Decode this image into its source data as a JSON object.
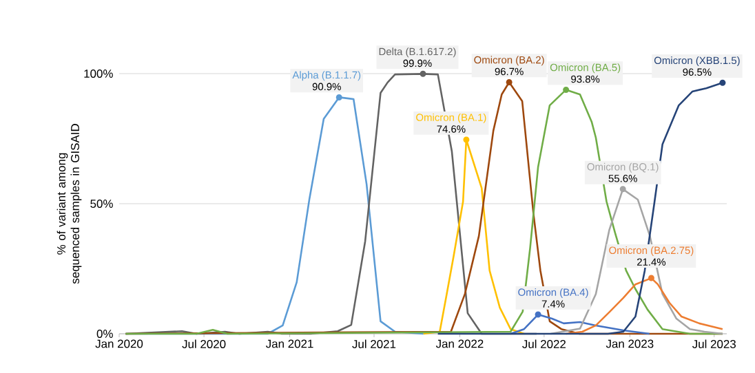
{
  "chart_data": {
    "type": "line",
    "ylabel": "% of variant among sequenced samples in GISAID",
    "xlim": [
      "2020-01-01",
      "2023-07-28"
    ],
    "ylim": [
      0,
      100
    ],
    "xticks": [
      {
        "value": "2020-01-01",
        "label": "Jan 2020"
      },
      {
        "value": "2020-07-01",
        "label": "Jul 2020"
      },
      {
        "value": "2021-01-01",
        "label": "Jan 2021"
      },
      {
        "value": "2021-07-01",
        "label": "Jul 2021"
      },
      {
        "value": "2022-01-01",
        "label": "Jan 2022"
      },
      {
        "value": "2022-07-01",
        "label": "Jul 2022"
      },
      {
        "value": "2023-01-01",
        "label": "Jan 2023"
      },
      {
        "value": "2023-07-01",
        "label": "Jul 2023"
      }
    ],
    "yticks": [
      {
        "value": 0,
        "label": "0%"
      },
      {
        "value": 50,
        "label": "50%"
      },
      {
        "value": 100,
        "label": "100%"
      }
    ],
    "grid": "y",
    "line_style": "solid",
    "series": [
      {
        "name": "Alpha (B.1.1.7)",
        "color": "#5b9bd5",
        "x": [
          "2020-01-15",
          "2020-11-15",
          "2020-12-17",
          "2021-01-16",
          "2021-02-12",
          "2021-03-15",
          "2021-04-17",
          "2021-05-18",
          "2021-06-15",
          "2021-07-15",
          "2021-08-15",
          "2021-10-15"
        ],
        "values": [
          0,
          0,
          3.2,
          19.8,
          51.5,
          82.6,
          90.9,
          90.2,
          57.5,
          4.8,
          0.8,
          0
        ],
        "value_labels": [
          null,
          null,
          null,
          null,
          null,
          null,
          "90.9%",
          null,
          null,
          null,
          null,
          null
        ]
      },
      {
        "name": "Delta (B.1.617.2)",
        "color": "#636363",
        "x": [
          "2020-01-15",
          "2020-05-15",
          "2020-06-15",
          "2020-08-15",
          "2020-09-15",
          "2020-11-15",
          "2020-12-15",
          "2021-02-15",
          "2021-04-14",
          "2021-05-13",
          "2021-06-12",
          "2021-07-15",
          "2021-07-30",
          "2021-08-15",
          "2021-10-14",
          "2021-11-15",
          "2021-12-15",
          "2022-01-18",
          "2022-02-17",
          "2022-06-15"
        ],
        "values": [
          0,
          1,
          0,
          0.8,
          0,
          0.8,
          0,
          0,
          1,
          3.4,
          35.6,
          92.6,
          96.6,
          99.7,
          99.9,
          99.7,
          70.1,
          7.9,
          0,
          0
        ],
        "value_labels": [
          null,
          null,
          null,
          null,
          null,
          null,
          null,
          null,
          null,
          null,
          null,
          null,
          null,
          null,
          "99.9%",
          null,
          null,
          null,
          null,
          null
        ]
      },
      {
        "name": "Omicron (BA.1)",
        "color": "#ffc000",
        "x": [
          "2021-10-15",
          "2021-11-19",
          "2021-12-04",
          "2021-12-19",
          "2022-01-08",
          "2022-01-15",
          "2022-02-17",
          "2022-03-06",
          "2022-03-28",
          "2022-04-20",
          "2022-05-19"
        ],
        "values": [
          0,
          0.8,
          15.3,
          30,
          50.8,
          74.6,
          56,
          24.3,
          10,
          1.8,
          0
        ],
        "value_labels": [
          null,
          null,
          null,
          null,
          null,
          "74.6%",
          null,
          null,
          null,
          null,
          null
        ]
      },
      {
        "name": "Omicron (BA.2)",
        "color": "#9e480e",
        "x": [
          "2020-01-15",
          "2021-12-13",
          "2022-01-12",
          "2022-02-11",
          "2022-03-14",
          "2022-04-01",
          "2022-04-17",
          "2022-05-15",
          "2022-06-08",
          "2022-06-23",
          "2022-07-13",
          "2022-08-07",
          "2022-09-15",
          "2023-07-19"
        ],
        "values": [
          0,
          0.8,
          15.3,
          37.6,
          78,
          92,
          96.7,
          89.4,
          46.3,
          24.3,
          4.8,
          1.8,
          0,
          0
        ],
        "value_labels": [
          null,
          null,
          null,
          null,
          null,
          null,
          "96.7%",
          null,
          null,
          null,
          null,
          null,
          null,
          null
        ]
      },
      {
        "name": "Omicron (BA.4)",
        "color": "#4472c4",
        "x": [
          "2022-04-20",
          "2022-05-19",
          "2022-06-18",
          "2022-07-18",
          "2022-08-12",
          "2022-09-16",
          "2022-10-20",
          "2022-12-18",
          "2023-02-12"
        ],
        "values": [
          0,
          1.8,
          7.4,
          5.8,
          4,
          4.5,
          3.2,
          1.3,
          0
        ],
        "value_labels": [
          null,
          null,
          "7.4%",
          null,
          null,
          null,
          null,
          null,
          null
        ]
      },
      {
        "name": "Omicron (BA.5)",
        "color": "#70ad47",
        "x": [
          "2020-01-15",
          "2020-06-15",
          "2020-07-20",
          "2020-08-20",
          "2022-04-20",
          "2022-05-16",
          "2022-06-01",
          "2022-06-18",
          "2022-07-13",
          "2022-08-17",
          "2022-09-16",
          "2022-10-11",
          "2022-10-20",
          "2022-11-12",
          "2022-11-30",
          "2022-12-24",
          "2023-01-13",
          "2023-02-08",
          "2023-03-12",
          "2023-05-10",
          "2023-07-19"
        ],
        "values": [
          0,
          0,
          1.5,
          0,
          0.8,
          8.5,
          33,
          64,
          87.8,
          93.8,
          92,
          81.5,
          75.4,
          50.8,
          39,
          24.3,
          17.2,
          9.3,
          1.8,
          0,
          0
        ],
        "value_labels": [
          null,
          null,
          null,
          null,
          null,
          null,
          null,
          null,
          null,
          "93.8%",
          null,
          null,
          null,
          null,
          null,
          null,
          null,
          null,
          null,
          null,
          null
        ]
      },
      {
        "name": "Omicron (BQ.1)",
        "color": "#a5a5a5",
        "x": [
          "2022-07-15",
          "2022-09-16",
          "2022-10-20",
          "2022-11-18",
          "2022-12-17",
          "2023-01-18",
          "2023-02-13",
          "2023-03-12",
          "2023-04-11",
          "2023-05-10",
          "2023-06-10",
          "2023-07-19"
        ],
        "values": [
          0,
          2,
          15.3,
          40,
          55.6,
          51.6,
          37.6,
          15.3,
          5.8,
          1.8,
          0.8,
          0
        ],
        "value_labels": [
          null,
          null,
          null,
          null,
          "55.6%",
          null,
          null,
          null,
          null,
          null,
          null,
          null
        ]
      },
      {
        "name": "Omicron (BA.2.75)",
        "color": "#ed7d31",
        "x": [
          "2022-08-17",
          "2022-09-21",
          "2022-10-20",
          "2022-11-19",
          "2022-12-18",
          "2023-01-13",
          "2023-02-16",
          "2023-03-02",
          "2023-03-27",
          "2023-04-22",
          "2023-05-30",
          "2023-07-19"
        ],
        "values": [
          0,
          0.8,
          3.2,
          8.5,
          13.8,
          19,
          21.4,
          19,
          11.9,
          6.6,
          4,
          1.8
        ],
        "value_labels": [
          null,
          null,
          null,
          null,
          null,
          null,
          "21.4%",
          null,
          null,
          null,
          null,
          null
        ]
      },
      {
        "name": "Omicron (XBB.1.5)",
        "color": "#264478",
        "x": [
          "2021-11-15",
          "2022-11-15",
          "2022-12-18",
          "2023-01-13",
          "2023-02-02",
          "2023-02-23",
          "2023-03-12",
          "2023-04-16",
          "2023-05-15",
          "2023-06-14",
          "2023-07-19"
        ],
        "values": [
          0,
          0,
          0.8,
          6.6,
          24.3,
          50.8,
          72.8,
          87.8,
          93.1,
          94.4,
          96.5
        ],
        "value_labels": [
          null,
          null,
          null,
          null,
          null,
          null,
          null,
          null,
          null,
          null,
          "96.5%"
        ]
      }
    ]
  }
}
